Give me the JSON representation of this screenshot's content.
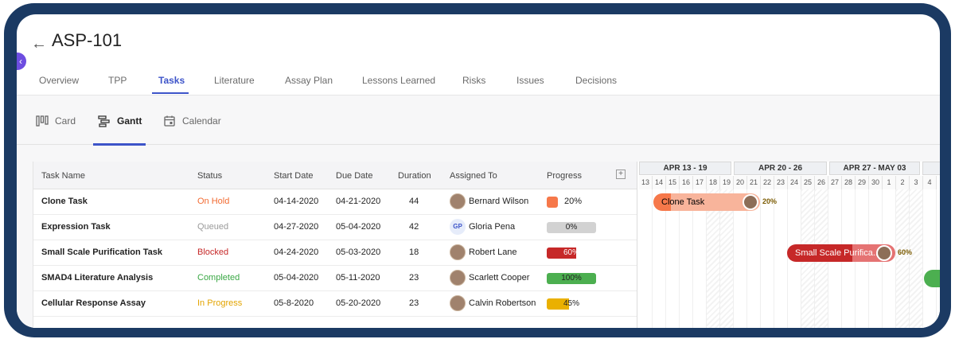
{
  "title": "ASP-101",
  "tabs": [
    "Overview",
    "TPP",
    "Tasks",
    "Literature",
    "Assay Plan",
    "Lessons Learned",
    "Risks",
    "Issues",
    "Decisions"
  ],
  "active_tab": "Tasks",
  "views": [
    "Card",
    "Gantt",
    "Calendar"
  ],
  "active_view": "Gantt",
  "columns": [
    "Task Name",
    "Status",
    "Start Date",
    "Due Date",
    "Duration",
    "Assigned To",
    "Progress"
  ],
  "rows": [
    {
      "name": "Clone Task",
      "status": "On Hold",
      "status_color": "#f26b32",
      "start": "04-14-2020",
      "due": "04-21-2020",
      "duration": "44",
      "assignee": "Bernard Wilson",
      "initials": "",
      "progress": "20%",
      "progress_value": 20,
      "progress_color": "#f6784a"
    },
    {
      "name": "Expression Task",
      "status": "Queued",
      "status_color": "#9a9a9a",
      "start": "04-27-2020",
      "due": "05-04-2020",
      "duration": "42",
      "assignee": "Gloria Pena",
      "initials": "GP",
      "progress": "0%",
      "progress_value": 0,
      "progress_color": "#d2d2d2"
    },
    {
      "name": "Small Scale Purification Task",
      "status": "Blocked",
      "status_color": "#c62828",
      "start": "04-24-2020",
      "due": "05-03-2020",
      "duration": "18",
      "assignee": "Robert Lane",
      "initials": "",
      "progress": "60%",
      "progress_value": 60,
      "progress_color": "#c62828"
    },
    {
      "name": "SMAD4 Literature Analysis",
      "status": "Completed",
      "status_color": "#3aa845",
      "start": "05-04-2020",
      "due": "05-11-2020",
      "duration": "23",
      "assignee": "Scarlett Cooper",
      "initials": "",
      "progress": "100%",
      "progress_value": 100,
      "progress_color": "#4caf50"
    },
    {
      "name": "Cellular Response Assay",
      "status": "In Progress",
      "status_color": "#e3a400",
      "start": "05-8-2020",
      "due": "05-20-2020",
      "duration": "23",
      "assignee": "Calvin Robertson",
      "initials": "",
      "progress": "45%",
      "progress_value": 45,
      "progress_color": "#eab000"
    }
  ],
  "gantt": {
    "weeks": [
      "APR 13 - 19",
      "APR 20 - 26",
      "APR 27 - MAY 03"
    ],
    "days": [
      "13",
      "14",
      "15",
      "16",
      "17",
      "18",
      "19",
      "20",
      "21",
      "22",
      "23",
      "24",
      "25",
      "26",
      "27",
      "28",
      "29",
      "30",
      "1",
      "2",
      "3",
      "4"
    ],
    "bars": [
      {
        "label": "Clone Task",
        "pct": "20%"
      },
      {
        "label": "Small Scale Purifica...",
        "pct": "60%"
      }
    ]
  }
}
